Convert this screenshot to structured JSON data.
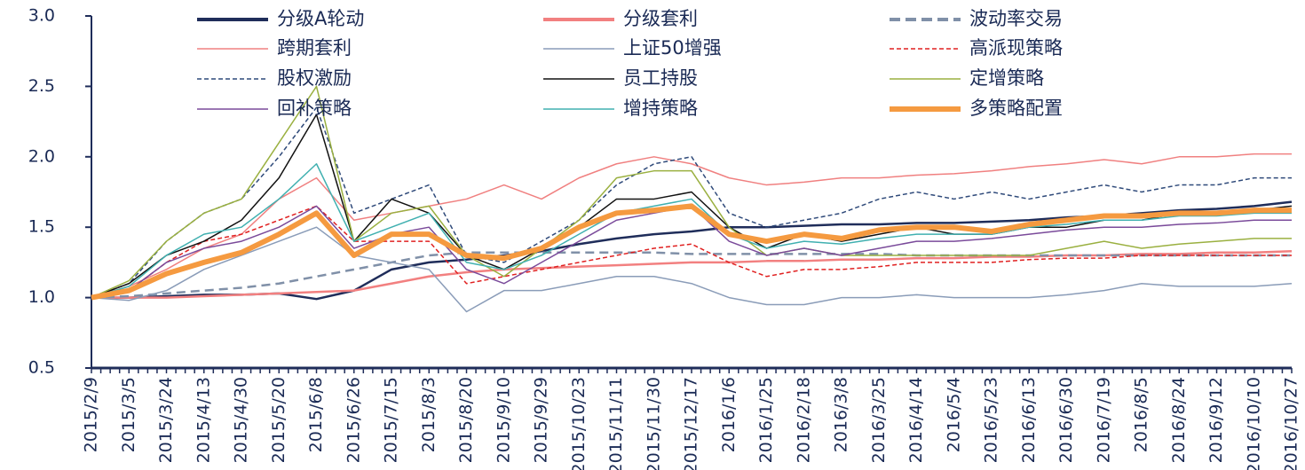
{
  "chart_data": {
    "type": "line",
    "categories": [
      "2015/2/9",
      "2015/3/5",
      "2015/3/24",
      "2015/4/13",
      "2015/4/30",
      "2015/5/20",
      "2015/6/8",
      "2015/6/26",
      "2015/7/15",
      "2015/8/3",
      "2015/8/20",
      "2015/9/10",
      "2015/9/29",
      "2015/10/23",
      "2015/11/11",
      "2015/11/30",
      "2015/12/17",
      "2016/1/6",
      "2016/1/25",
      "2016/2/18",
      "2016/3/8",
      "2016/3/25",
      "2016/4/14",
      "2016/5/4",
      "2016/5/23",
      "2016/6/13",
      "2016/6/30",
      "2016/7/19",
      "2016/8/5",
      "2016/8/24",
      "2016/9/12",
      "2016/10/10",
      "2016/10/27"
    ],
    "ylim": [
      0.5,
      3.0
    ],
    "yticks": [
      0.5,
      {
        "value": 1,
        "label": "1.0"
      },
      1.5,
      {
        "value": 2,
        "label": "2.0"
      },
      2.5,
      {
        "value": 3,
        "label": "3.0"
      }
    ],
    "grid": false,
    "series": [
      {
        "name": "分级A轮动",
        "color": "#1f2d5a",
        "thick": true,
        "dashed": false,
        "values": [
          1.0,
          1.0,
          1.01,
          1.02,
          1.02,
          1.03,
          0.99,
          1.05,
          1.2,
          1.25,
          1.27,
          1.3,
          1.33,
          1.38,
          1.42,
          1.45,
          1.47,
          1.5,
          1.5,
          1.51,
          1.52,
          1.52,
          1.53,
          1.53,
          1.54,
          1.55,
          1.57,
          1.58,
          1.6,
          1.62,
          1.63,
          1.65,
          1.68
        ]
      },
      {
        "name": "分级套利",
        "color": "#f28080",
        "thick": true,
        "dashed": false,
        "values": [
          1.0,
          1.0,
          1.0,
          1.01,
          1.02,
          1.03,
          1.04,
          1.05,
          1.1,
          1.15,
          1.18,
          1.2,
          1.21,
          1.22,
          1.23,
          1.24,
          1.25,
          1.25,
          1.26,
          1.26,
          1.27,
          1.27,
          1.28,
          1.28,
          1.29,
          1.29,
          1.3,
          1.3,
          1.31,
          1.31,
          1.32,
          1.32,
          1.33
        ]
      },
      {
        "name": "波动率交易",
        "color": "#8090a8",
        "thick": true,
        "dashed": true,
        "values": [
          1.0,
          1.01,
          1.03,
          1.05,
          1.07,
          1.1,
          1.15,
          1.2,
          1.25,
          1.3,
          1.32,
          1.32,
          1.32,
          1.32,
          1.32,
          1.32,
          1.31,
          1.31,
          1.31,
          1.31,
          1.31,
          1.31,
          1.3,
          1.3,
          1.3,
          1.3,
          1.3,
          1.3,
          1.3,
          1.3,
          1.3,
          1.3,
          1.3
        ]
      },
      {
        "name": "跨期套利",
        "color": "#f08080",
        "thick": false,
        "dashed": false,
        "values": [
          1.0,
          1.08,
          1.2,
          1.35,
          1.45,
          1.7,
          1.85,
          1.55,
          1.6,
          1.65,
          1.7,
          1.8,
          1.7,
          1.85,
          1.95,
          2.0,
          1.95,
          1.85,
          1.8,
          1.82,
          1.85,
          1.85,
          1.87,
          1.88,
          1.9,
          1.93,
          1.95,
          1.98,
          1.95,
          2.0,
          2.0,
          2.02,
          2.02
        ]
      },
      {
        "name": "上证50增强",
        "color": "#8a9cb8",
        "thick": false,
        "dashed": false,
        "values": [
          1.0,
          0.98,
          1.05,
          1.2,
          1.3,
          1.4,
          1.5,
          1.3,
          1.25,
          1.2,
          0.9,
          1.05,
          1.05,
          1.1,
          1.15,
          1.15,
          1.1,
          1.0,
          0.95,
          0.95,
          1.0,
          1.0,
          1.02,
          1.0,
          1.0,
          1.0,
          1.02,
          1.05,
          1.1,
          1.08,
          1.08,
          1.08,
          1.1
        ]
      },
      {
        "name": "高派现策略",
        "color": "#e02020",
        "thick": false,
        "dashed": true,
        "values": [
          1.0,
          1.05,
          1.25,
          1.4,
          1.45,
          1.55,
          1.65,
          1.4,
          1.4,
          1.4,
          1.1,
          1.15,
          1.2,
          1.25,
          1.3,
          1.35,
          1.38,
          1.25,
          1.15,
          1.2,
          1.2,
          1.22,
          1.25,
          1.25,
          1.25,
          1.27,
          1.28,
          1.28,
          1.3,
          1.3,
          1.3,
          1.3,
          1.3
        ]
      },
      {
        "name": "股权激励",
        "color": "#2f4a7a",
        "thick": false,
        "dashed": true,
        "values": [
          1.0,
          1.1,
          1.4,
          1.6,
          1.7,
          2.0,
          2.35,
          1.6,
          1.7,
          1.8,
          1.3,
          1.25,
          1.4,
          1.55,
          1.8,
          1.95,
          2.0,
          1.6,
          1.5,
          1.55,
          1.6,
          1.7,
          1.75,
          1.7,
          1.75,
          1.7,
          1.75,
          1.8,
          1.75,
          1.8,
          1.8,
          1.85,
          1.85
        ]
      },
      {
        "name": "员工持股",
        "color": "#111111",
        "thick": false,
        "dashed": false,
        "values": [
          1.0,
          1.1,
          1.3,
          1.4,
          1.55,
          1.85,
          2.3,
          1.4,
          1.7,
          1.6,
          1.3,
          1.2,
          1.35,
          1.5,
          1.7,
          1.7,
          1.75,
          1.5,
          1.35,
          1.45,
          1.4,
          1.45,
          1.5,
          1.45,
          1.45,
          1.5,
          1.5,
          1.55,
          1.55,
          1.6,
          1.6,
          1.62,
          1.65
        ]
      },
      {
        "name": "定增策略",
        "color": "#9ab040",
        "thick": false,
        "dashed": false,
        "values": [
          1.0,
          1.12,
          1.4,
          1.6,
          1.7,
          2.1,
          2.5,
          1.4,
          1.6,
          1.65,
          1.3,
          1.15,
          1.35,
          1.55,
          1.85,
          1.9,
          1.9,
          1.5,
          1.3,
          1.35,
          1.3,
          1.3,
          1.3,
          1.3,
          1.3,
          1.3,
          1.35,
          1.4,
          1.35,
          1.38,
          1.4,
          1.42,
          1.42
        ]
      },
      {
        "name": "回补策略",
        "color": "#7a4a9a",
        "thick": false,
        "dashed": false,
        "values": [
          1.0,
          1.05,
          1.25,
          1.35,
          1.4,
          1.5,
          1.65,
          1.35,
          1.45,
          1.5,
          1.2,
          1.1,
          1.25,
          1.4,
          1.55,
          1.6,
          1.65,
          1.4,
          1.3,
          1.35,
          1.3,
          1.35,
          1.4,
          1.4,
          1.42,
          1.45,
          1.48,
          1.5,
          1.5,
          1.52,
          1.53,
          1.55,
          1.55
        ]
      },
      {
        "name": "增持策略",
        "color": "#40b0b0",
        "thick": false,
        "dashed": false,
        "values": [
          1.0,
          1.08,
          1.3,
          1.45,
          1.5,
          1.7,
          1.95,
          1.4,
          1.5,
          1.6,
          1.25,
          1.2,
          1.3,
          1.45,
          1.6,
          1.65,
          1.7,
          1.45,
          1.35,
          1.4,
          1.38,
          1.42,
          1.45,
          1.45,
          1.45,
          1.5,
          1.52,
          1.55,
          1.55,
          1.58,
          1.58,
          1.6,
          1.6
        ]
      },
      {
        "name": "多策略配置",
        "color": "#f59a40",
        "thick": true,
        "dashed": false,
        "values": [
          1.0,
          1.05,
          1.17,
          1.25,
          1.32,
          1.45,
          1.6,
          1.3,
          1.45,
          1.45,
          1.3,
          1.28,
          1.35,
          1.5,
          1.6,
          1.62,
          1.65,
          1.45,
          1.4,
          1.45,
          1.42,
          1.48,
          1.5,
          1.5,
          1.47,
          1.52,
          1.55,
          1.58,
          1.58,
          1.6,
          1.6,
          1.62,
          1.62
        ]
      }
    ]
  }
}
